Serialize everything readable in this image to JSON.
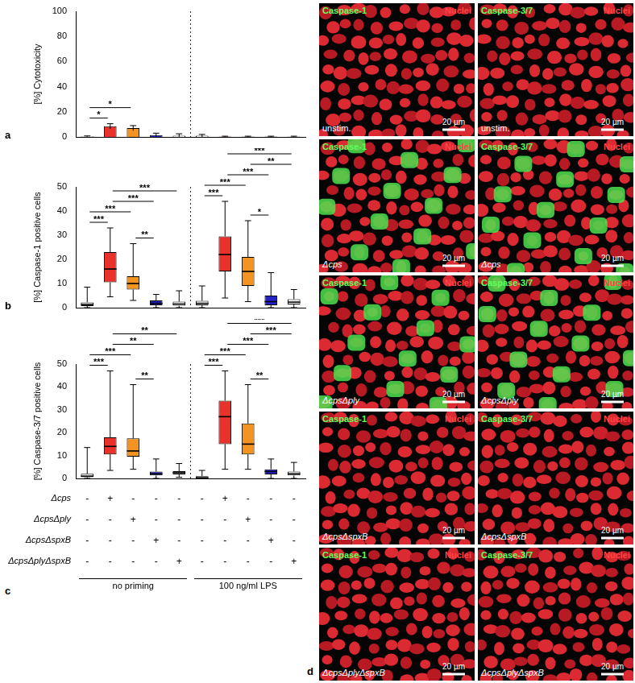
{
  "chart_data": [
    {
      "type": "bar",
      "panel_label": "a",
      "y_label": "[%] Cytotoxicity",
      "categories": [
        null,
        null,
        null,
        null,
        null,
        null,
        null,
        null,
        null,
        null
      ],
      "values": [
        0.5,
        8.5,
        7,
        1.5,
        1,
        1,
        0.3,
        0.3,
        0.3,
        0.3
      ],
      "errors": [
        0.3,
        2,
        2,
        1.5,
        1.5,
        1,
        0.3,
        0.3,
        0.3,
        0.3
      ],
      "colors": [
        "#ffffff",
        "#e8322b",
        "#f39322",
        "#2424c6",
        "#ffffff",
        "#ffffff",
        "#e8322b",
        "#f39322",
        "#2424c6",
        "#ffffff"
      ],
      "ylim": [
        0,
        100
      ],
      "yticks": [
        0,
        20,
        40,
        60,
        80,
        100
      ],
      "grid": false,
      "tick_labels": "y",
      "significance": [
        {
          "from": 0,
          "to": 1,
          "label": "*"
        },
        {
          "from": 0,
          "to": 2,
          "label": "*"
        }
      ]
    },
    {
      "type": "boxplot",
      "panel_label": "b",
      "y_label": "[%] Caspase-1 positive cells",
      "categories": [
        null,
        null,
        null,
        null,
        null,
        null,
        null,
        null,
        null,
        null
      ],
      "boxes": [
        {
          "whisker_low": 0,
          "q1": 0.7,
          "median": 1.3,
          "q3": 2.2,
          "whisker_high": 8.5
        },
        {
          "whisker_low": 4.5,
          "q1": 10.5,
          "median": 16,
          "q3": 23,
          "whisker_high": 33
        },
        {
          "whisker_low": 3,
          "q1": 7.5,
          "median": 10,
          "q3": 13,
          "whisker_high": 26.5
        },
        {
          "whisker_low": 0,
          "q1": 1,
          "median": 1.8,
          "q3": 3,
          "whisker_high": 5.5
        },
        {
          "whisker_low": 0,
          "q1": 0.8,
          "median": 1.5,
          "q3": 2.5,
          "whisker_high": 7
        },
        {
          "whisker_low": 0,
          "q1": 1,
          "median": 1.8,
          "q3": 2.8,
          "whisker_high": 9
        },
        {
          "whisker_low": 4,
          "q1": 15,
          "median": 22,
          "q3": 29.5,
          "whisker_high": 44
        },
        {
          "whisker_low": 2.5,
          "q1": 9,
          "median": 15,
          "q3": 21,
          "whisker_high": 36
        },
        {
          "whisker_low": 0,
          "q1": 1,
          "median": 2.5,
          "q3": 5,
          "whisker_high": 14.5
        },
        {
          "whisker_low": 0,
          "q1": 1.3,
          "median": 2.3,
          "q3": 3.5,
          "whisker_high": 7.5
        }
      ],
      "colors": [
        "#ffffff",
        "#e8322b",
        "#f39322",
        "#2424c6",
        "#ffffff",
        "#ffffff",
        "#e8322b",
        "#f39322",
        "#2424c6",
        "#ffffff"
      ],
      "ylim": [
        0,
        50
      ],
      "yticks": [
        0,
        10,
        20,
        30,
        40,
        50
      ],
      "grid": false,
      "tick_labels": "y",
      "significance": [
        {
          "from": 0,
          "to": 1,
          "label": "***"
        },
        {
          "from": 0,
          "to": 2,
          "label": "***"
        },
        {
          "from": 1,
          "to": 3,
          "label": "***"
        },
        {
          "from": 1,
          "to": 4,
          "label": "***"
        },
        {
          "from": 2,
          "to": 3,
          "label": "**"
        },
        {
          "from": 5,
          "to": 6,
          "label": "***"
        },
        {
          "from": 5,
          "to": 7,
          "label": "***"
        },
        {
          "from": 6,
          "to": 8,
          "label": "***"
        },
        {
          "from": 6,
          "to": 9,
          "label": "***"
        },
        {
          "from": 7,
          "to": 8,
          "label": "*"
        },
        {
          "from": 7,
          "to": 9,
          "label": "**"
        }
      ]
    },
    {
      "type": "boxplot",
      "panel_label": "c",
      "y_label": "[%] Caspase-3/7 positive cells",
      "categories": [
        null,
        null,
        null,
        null,
        null,
        null,
        null,
        null,
        null,
        null
      ],
      "boxes": [
        {
          "whisker_low": 0,
          "q1": 0.5,
          "median": 1,
          "q3": 2,
          "whisker_high": 13.5
        },
        {
          "whisker_low": 3.5,
          "q1": 10.5,
          "median": 14,
          "q3": 18,
          "whisker_high": 47
        },
        {
          "whisker_low": 4,
          "q1": 9.5,
          "median": 12,
          "q3": 17.5,
          "whisker_high": 41
        },
        {
          "whisker_low": 0,
          "q1": 1.3,
          "median": 2,
          "q3": 3,
          "whisker_high": 8.5
        },
        {
          "whisker_low": 0.5,
          "q1": 1.8,
          "median": 2.5,
          "q3": 3.2,
          "whisker_high": 6.5
        },
        {
          "whisker_low": 0,
          "q1": 0,
          "median": 0.3,
          "q3": 1,
          "whisker_high": 3.5
        },
        {
          "whisker_low": 4,
          "q1": 15,
          "median": 27,
          "q3": 34,
          "whisker_high": 47
        },
        {
          "whisker_low": 4,
          "q1": 10.5,
          "median": 15,
          "q3": 24,
          "whisker_high": 41
        },
        {
          "whisker_low": 0,
          "q1": 1.8,
          "median": 3,
          "q3": 4,
          "whisker_high": 8.5
        },
        {
          "whisker_low": 0,
          "q1": 1.3,
          "median": 2,
          "q3": 3,
          "whisker_high": 7
        }
      ],
      "colors": [
        "#ffffff",
        "#e8322b",
        "#f39322",
        "#2424c6",
        "#ffffff",
        "#ffffff",
        "#e8322b",
        "#f39322",
        "#2424c6",
        "#ffffff"
      ],
      "ylim": [
        0,
        50
      ],
      "yticks": [
        0,
        10,
        20,
        30,
        40,
        50
      ],
      "grid": false,
      "tick_labels": "y",
      "significance": [
        {
          "from": 0,
          "to": 1,
          "label": "***"
        },
        {
          "from": 0,
          "to": 2,
          "label": "***"
        },
        {
          "from": 1,
          "to": 3,
          "label": "**"
        },
        {
          "from": 1,
          "to": 4,
          "label": "**"
        },
        {
          "from": 2,
          "to": 3,
          "label": "**"
        },
        {
          "from": 5,
          "to": 6,
          "label": "***"
        },
        {
          "from": 5,
          "to": 7,
          "label": "***"
        },
        {
          "from": 6,
          "to": 8,
          "label": "***"
        },
        {
          "from": 6,
          "to": 9,
          "label": "***"
        },
        {
          "from": 7,
          "to": 8,
          "label": "**"
        },
        {
          "from": 7,
          "to": 9,
          "label": "***"
        }
      ]
    }
  ],
  "strain_matrix": {
    "rows": [
      "Δcps",
      "ΔcpsΔply",
      "ΔcpsΔspxB",
      "ΔcpsΔplyΔspxB"
    ],
    "cells": [
      [
        "-",
        "+",
        "-",
        "-",
        "-",
        "-",
        "+",
        "-",
        "-",
        "-"
      ],
      [
        "-",
        "-",
        "+",
        "-",
        "-",
        "-",
        "-",
        "+",
        "-",
        "-"
      ],
      [
        "-",
        "-",
        "-",
        "+",
        "-",
        "-",
        "-",
        "-",
        "+",
        "-"
      ],
      [
        "-",
        "-",
        "-",
        "-",
        "+",
        "-",
        "-",
        "-",
        "-",
        "+"
      ]
    ]
  },
  "groups": [
    {
      "label": "no priming",
      "from": 0,
      "to": 4
    },
    {
      "label": "100 ng/ml LPS",
      "from": 5,
      "to": 9
    }
  ],
  "images": {
    "panel_label": "d",
    "stains": [
      "Caspase-1",
      "Caspase-3/7"
    ],
    "counterstain": "Nuclei",
    "scale_bar": "20 µm",
    "rows": [
      {
        "label": "unstim.",
        "italic": false,
        "green_signal": false
      },
      {
        "label": "Δcps",
        "italic": true,
        "green_signal": true
      },
      {
        "label": "ΔcpsΔply",
        "italic": true,
        "green_signal": true
      },
      {
        "label": "ΔcpsΔspxB",
        "italic": true,
        "green_signal": false
      },
      {
        "label": "ΔcpsΔplyΔspxB",
        "italic": true,
        "green_signal": false
      }
    ]
  }
}
